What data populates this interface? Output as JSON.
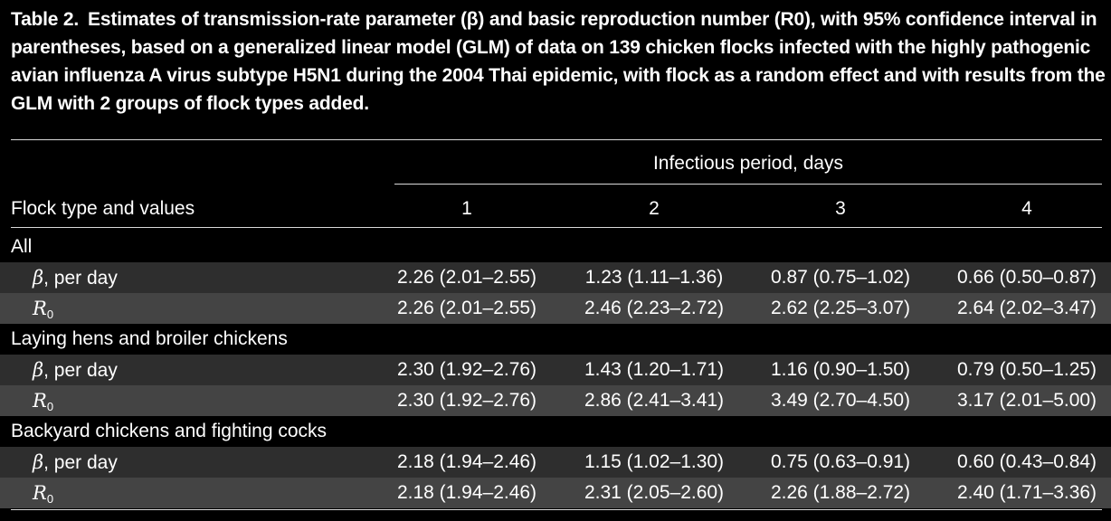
{
  "caption": {
    "label": "Table 2.",
    "text": "Estimates of transmission-rate parameter (β) and basic reproduction number (R0), with 95% confidence interval in parentheses, based on a generalized linear model (GLM) of data on 139 chicken flocks infected with the highly pathogenic avian influenza A virus subtype H5N1 during the 2004 Thai epidemic, with flock as a random effect and with results from the GLM with 2 groups of flock types added."
  },
  "header": {
    "group": "Infectious period, days",
    "row_head": "Flock type and values",
    "columns": [
      "1",
      "2",
      "3",
      "4"
    ]
  },
  "groups": [
    {
      "label": "All",
      "beta": {
        "label": ", per day",
        "values": [
          "2.26 (2.01–2.55)",
          "1.23 (1.11–1.36)",
          "0.87 (0.75–1.02)",
          "0.66 (0.50–0.87)"
        ]
      },
      "r0": {
        "values": [
          "2.26 (2.01–2.55)",
          "2.46 (2.23–2.72)",
          "2.62 (2.25–3.07)",
          "2.64 (2.02–3.47)"
        ]
      }
    },
    {
      "label": "Laying hens and broiler chickens",
      "beta": {
        "label": ", per day",
        "values": [
          "2.30 (1.92–2.76)",
          "1.43 (1.20–1.71)",
          "1.16 (0.90–1.50)",
          "0.79 (0.50–1.25)"
        ]
      },
      "r0": {
        "values": [
          "2.30 (1.92–2.76)",
          "2.86 (2.41–3.41)",
          "3.49 (2.70–4.50)",
          "3.17 (2.01–5.00)"
        ]
      }
    },
    {
      "label": "Backyard chickens and fighting cocks",
      "beta": {
        "label": ", per day",
        "values": [
          "2.18 (1.94–2.46)",
          "1.15 (1.02–1.30)",
          "0.75 (0.63–0.91)",
          "0.60 (0.43–0.84)"
        ]
      },
      "r0": {
        "values": [
          "2.18 (1.94–2.46)",
          "2.31 (2.05–2.60)",
          "2.26 (1.88–2.72)",
          "2.40 (1.71–3.36)"
        ]
      }
    }
  ],
  "symbols": {
    "beta": "β",
    "r0_main": "R",
    "r0_sub": "0"
  },
  "colors": {
    "background": "#000000",
    "text": "#ffffff",
    "band_light": "#3a3a3a",
    "band_dark": "#101010",
    "rule": "#d9d9d9"
  }
}
